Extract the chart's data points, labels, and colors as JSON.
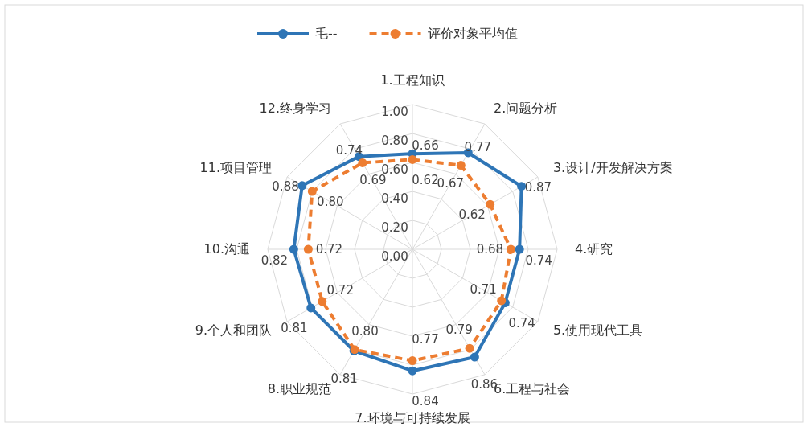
{
  "chart_data": {
    "type": "radar",
    "categories": [
      "1.工程知识",
      "2.问题分析",
      "3.设计/开发解决方案",
      "4.研究",
      "5.使用现代工具",
      "6.工程与社会",
      "7.环境与可持续发展",
      "8.职业规范",
      "9.个人和团队",
      "10.沟通",
      "11.项目管理",
      "12.终身学习"
    ],
    "series": [
      {
        "name": "毛--",
        "color": "#2e75b6",
        "line_style": "solid",
        "values": [
          0.66,
          0.77,
          0.87,
          0.74,
          0.74,
          0.86,
          0.84,
          0.81,
          0.81,
          0.82,
          0.88,
          0.74
        ],
        "value_labels": [
          "0.66",
          "0.77",
          "0.87",
          "0.74",
          "0.74",
          "0.86",
          "0.84",
          "0.81",
          "0.81",
          "0.82",
          "0.88",
          "0.74"
        ]
      },
      {
        "name": "评价对象平均值",
        "color": "#ed7d31",
        "line_style": "dashed",
        "values": [
          0.62,
          0.67,
          0.62,
          0.68,
          0.71,
          0.79,
          0.77,
          0.8,
          0.72,
          0.72,
          0.8,
          0.69
        ],
        "value_labels": [
          "0.62",
          "0.67",
          "0.62",
          "0.68",
          "0.71",
          "0.79",
          "0.77",
          "0.80",
          "0.72",
          "0.72",
          "0.80",
          "0.69"
        ]
      }
    ],
    "ylim": [
      0,
      1
    ],
    "yticks": [
      {
        "value": 0,
        "label": "0.00"
      },
      {
        "value": 0.2,
        "label": "0.20"
      },
      {
        "value": 0.4,
        "label": "0.40"
      },
      {
        "value": 0.6,
        "label": "0.60"
      },
      {
        "value": 0.8,
        "label": "0.80"
      },
      {
        "value": 1,
        "label": "1.00"
      }
    ],
    "grid": true,
    "legend": "top",
    "marker": "circle"
  }
}
